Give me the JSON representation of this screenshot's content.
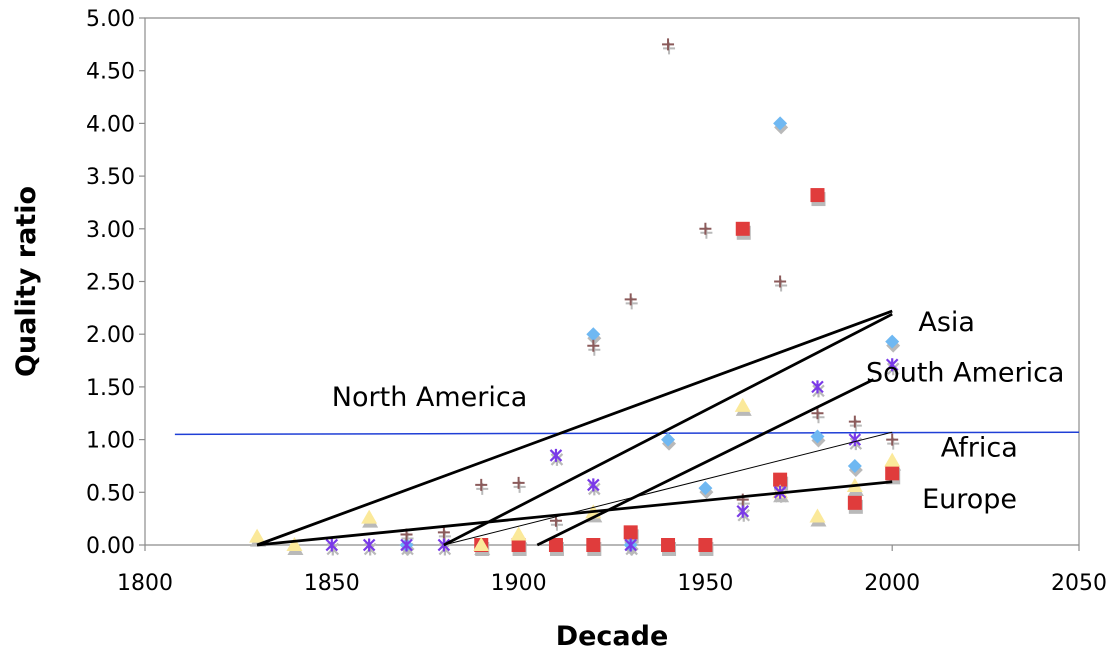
{
  "chart_data": {
    "type": "scatter",
    "title": "",
    "xlabel": "Decade",
    "ylabel": "Quality ratio",
    "xlim": [
      1800,
      2050
    ],
    "ylim": [
      0,
      5
    ],
    "xticks": [
      "1800",
      "1850",
      "1900",
      "1950",
      "2000",
      "2050"
    ],
    "yticks": [
      "0.00",
      "0.50",
      "1.00",
      "1.50",
      "2.00",
      "2.50",
      "3.00",
      "3.50",
      "4.00",
      "4.50",
      "5.00"
    ],
    "legend": "none",
    "colors": {
      "asia": "#6fb8f2",
      "europe": "#e03c3c",
      "africa": "#fbe99a",
      "south_america": "#7a3ae8",
      "north_america": "#8b5a5a",
      "shadow": "#b9b9b9",
      "reference_line": "#1f3fd6",
      "trend": "#000000"
    },
    "series": [
      {
        "key": "asia",
        "marker": "diamond",
        "points": [
          [
            1870,
            0.0
          ],
          [
            1920,
            2.0
          ],
          [
            1930,
            0.0
          ],
          [
            1940,
            1.0
          ],
          [
            1950,
            0.54
          ],
          [
            1970,
            4.0
          ],
          [
            1980,
            1.03
          ],
          [
            1990,
            0.75
          ],
          [
            2000,
            1.93
          ]
        ]
      },
      {
        "key": "europe",
        "marker": "square",
        "points": [
          [
            1890,
            0.0
          ],
          [
            1900,
            0.0
          ],
          [
            1910,
            0.0
          ],
          [
            1920,
            0.0
          ],
          [
            1930,
            0.12
          ],
          [
            1940,
            0.0
          ],
          [
            1950,
            0.0
          ],
          [
            1960,
            3.0
          ],
          [
            1970,
            0.62
          ],
          [
            1980,
            3.32
          ],
          [
            1990,
            0.4
          ],
          [
            2000,
            0.68
          ]
        ]
      },
      {
        "key": "africa",
        "marker": "triangle",
        "points": [
          [
            1830,
            0.08
          ],
          [
            1840,
            0.0
          ],
          [
            1860,
            0.26
          ],
          [
            1890,
            0.0
          ],
          [
            1900,
            0.1
          ],
          [
            1920,
            0.31
          ],
          [
            1960,
            1.32
          ],
          [
            1970,
            0.5
          ],
          [
            1980,
            0.27
          ],
          [
            1990,
            0.56
          ],
          [
            2000,
            0.8
          ]
        ]
      },
      {
        "key": "south_america",
        "marker": "asterisk",
        "points": [
          [
            1850,
            0.0
          ],
          [
            1860,
            0.0
          ],
          [
            1870,
            0.0
          ],
          [
            1880,
            0.0
          ],
          [
            1910,
            0.85
          ],
          [
            1920,
            0.57
          ],
          [
            1930,
            0.0
          ],
          [
            1960,
            0.32
          ],
          [
            1970,
            0.5
          ],
          [
            1980,
            1.5
          ],
          [
            1990,
            1.0
          ],
          [
            2000,
            1.71
          ]
        ]
      },
      {
        "key": "north_america",
        "marker": "plus",
        "points": [
          [
            1870,
            0.1
          ],
          [
            1880,
            0.12
          ],
          [
            1890,
            0.57
          ],
          [
            1900,
            0.59
          ],
          [
            1910,
            0.23
          ],
          [
            1920,
            1.89
          ],
          [
            1930,
            2.33
          ],
          [
            1940,
            4.75
          ],
          [
            1950,
            3.0
          ],
          [
            1960,
            0.43
          ],
          [
            1970,
            2.5
          ],
          [
            1980,
            1.25
          ],
          [
            1990,
            1.17
          ],
          [
            2000,
            1.0
          ]
        ]
      }
    ],
    "trend_lines": [
      {
        "key": "north_america",
        "from": [
          1830,
          0.0
        ],
        "to": [
          2000,
          2.22
        ],
        "width": 2.8
      },
      {
        "key": "asia",
        "from": [
          1880,
          0.0
        ],
        "to": [
          2000,
          2.19
        ],
        "width": 2.8
      },
      {
        "key": "south_america",
        "from": [
          1905,
          0.0
        ],
        "to": [
          1995,
          1.57
        ],
        "width": 2.8
      },
      {
        "key": "africa",
        "from": [
          1880,
          0.0
        ],
        "to": [
          2000,
          1.07
        ],
        "width": 1.0
      },
      {
        "key": "europe",
        "from": [
          1830,
          0.0
        ],
        "to": [
          2000,
          0.6
        ],
        "width": 2.8
      }
    ],
    "reference_line": {
      "from": [
        1808,
        1.05
      ],
      "to": [
        2050,
        1.07
      ]
    },
    "annotations": [
      {
        "text": "North America",
        "x": 1850,
        "y": 1.32
      },
      {
        "text": "Asia",
        "x": 2007,
        "y": 2.03
      },
      {
        "text": "South America",
        "x": 1993,
        "y": 1.55
      },
      {
        "text": "Africa",
        "x": 2013,
        "y": 0.84
      },
      {
        "text": "Europe",
        "x": 2008,
        "y": 0.35
      }
    ]
  }
}
